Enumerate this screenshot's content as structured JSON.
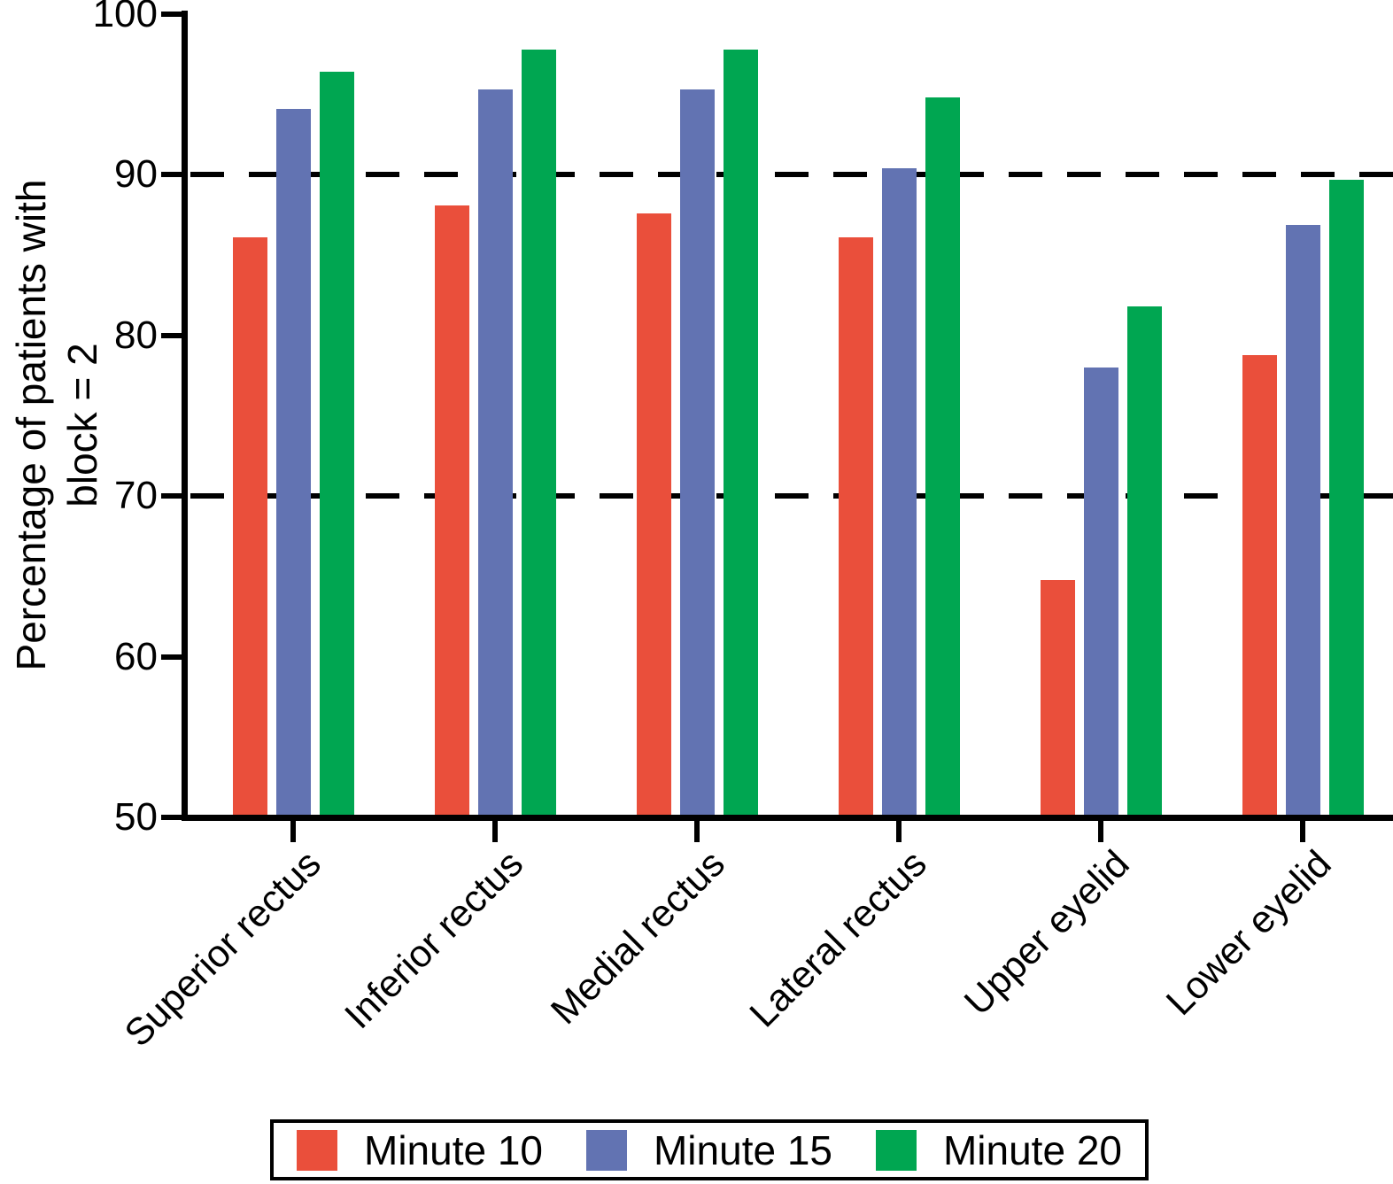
{
  "chart_data": {
    "type": "bar",
    "title": "",
    "ylabel_line1": "Percentage of patients with",
    "ylabel_line2": "block = 2",
    "categories": [
      "Superior rectus",
      "Inferior rectus",
      "Medial rectus",
      "Lateral rectus",
      "Upper eyelid",
      "Lower eyelid"
    ],
    "series": [
      {
        "name": "Minute 10",
        "color": "#EA4F3B",
        "values": [
          86.1,
          88.1,
          87.6,
          86.1,
          64.8,
          78.8
        ]
      },
      {
        "name": "Minute 15",
        "color": "#6273B2",
        "values": [
          94.1,
          95.3,
          95.3,
          90.4,
          78.0,
          86.9
        ]
      },
      {
        "name": "Minute 20",
        "color": "#00A651",
        "values": [
          96.4,
          97.8,
          97.8,
          94.8,
          81.8,
          89.7
        ]
      }
    ],
    "y_axis": {
      "min": 50,
      "max": 100,
      "tick_step": 10,
      "tick_labels": [
        "50",
        "60",
        "70",
        "80",
        "90",
        "100"
      ]
    },
    "gridlines": [
      70,
      90
    ],
    "grid_style": "dashed",
    "legend_position": "bottom",
    "axis_color": "#000000",
    "background_color": "#ffffff"
  }
}
